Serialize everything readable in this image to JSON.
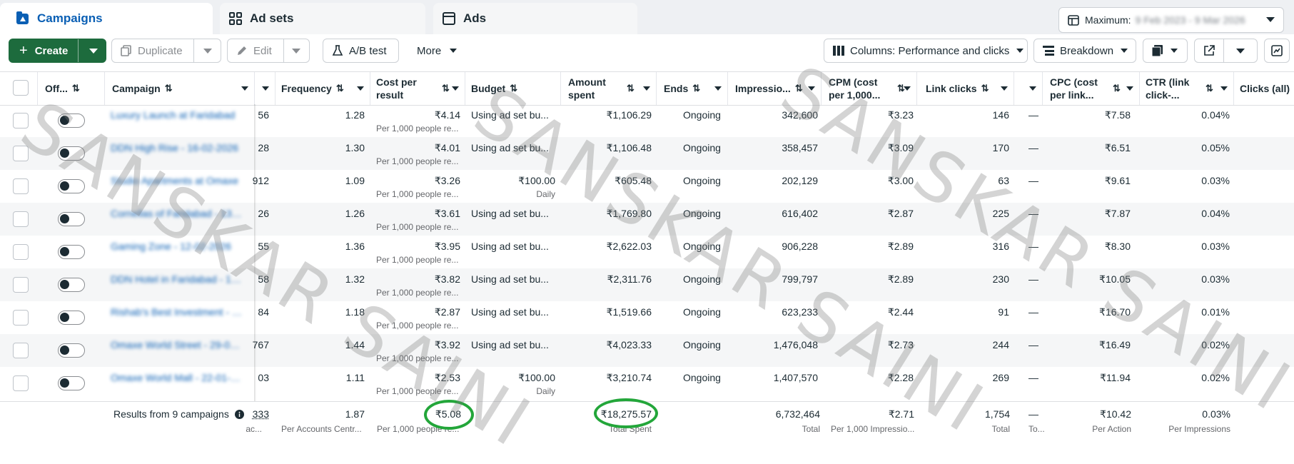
{
  "tabs": [
    {
      "label": "Campaigns",
      "icon": "campaign-icon",
      "active": true
    },
    {
      "label": "Ad sets",
      "icon": "grid-icon",
      "active": false
    },
    {
      "label": "Ads",
      "icon": "ad-icon",
      "active": false
    }
  ],
  "date_range": {
    "prefix": "Maximum:",
    "value": "9 Feb 2023 - 9 Mar 2026"
  },
  "toolbar": {
    "create": "Create",
    "duplicate": "Duplicate",
    "edit": "Edit",
    "ab_test": "A/B test",
    "more": "More",
    "columns": "Columns: Performance and clicks",
    "breakdown": "Breakdown"
  },
  "columns": {
    "off": "Off...",
    "campaign": "Campaign",
    "frequency": "Frequency",
    "cost_per_result": "Cost per result",
    "budget": "Budget",
    "amount_spent": "Amount spent",
    "ends": "Ends",
    "impressions": "Impressio...",
    "cpm": "CPM (cost per 1,000...",
    "link_clicks": "Link clicks",
    "cpc": "CPC (cost per link...",
    "ctr": "CTR (link click-...",
    "clicks_all": "Clicks (all)"
  },
  "rows": [
    {
      "name": "Luxury Launch at Faridabad",
      "partial": "56",
      "frequency": "1.28",
      "cost": "₹4.14",
      "cost_sub": "Per 1,000 people re...",
      "budget": "Using ad set bu...",
      "budget_sub": "",
      "spent": "₹1,106.29",
      "ends": "Ongoing",
      "impressions": "342,600",
      "cpm": "₹3.23",
      "link_clicks": "146",
      "dash": "—",
      "cpc": "₹7.58",
      "ctr": "0.04%"
    },
    {
      "name": "DDN High Rise - 16-02-2026",
      "partial": "28",
      "frequency": "1.30",
      "cost": "₹4.01",
      "cost_sub": "Per 1,000 people re...",
      "budget": "Using ad set bu...",
      "budget_sub": "",
      "spent": "₹1,106.48",
      "ends": "Ongoing",
      "impressions": "358,457",
      "cpm": "₹3.09",
      "link_clicks": "170",
      "dash": "—",
      "cpc": "₹6.51",
      "ctr": "0.05%"
    },
    {
      "name": "Studio Apartments at Omaxe",
      "partial": "912",
      "frequency": "1.09",
      "cost": "₹3.26",
      "cost_sub": "Per 1,000 people re...",
      "budget": "₹100.00",
      "budget_sub": "Daily",
      "spent": "₹605.48",
      "ends": "Ongoing",
      "impressions": "202,129",
      "cpm": "₹3.00",
      "link_clicks": "63",
      "dash": "—",
      "cpc": "₹9.61",
      "ctr": "0.03%"
    },
    {
      "name": "Cornellas of Faridabad - 13-02",
      "partial": "26",
      "frequency": "1.26",
      "cost": "₹3.61",
      "cost_sub": "Per 1,000 people re...",
      "budget": "Using ad set bu...",
      "budget_sub": "",
      "spent": "₹1,769.80",
      "ends": "Ongoing",
      "impressions": "616,402",
      "cpm": "₹2.87",
      "link_clicks": "225",
      "dash": "—",
      "cpc": "₹7.87",
      "ctr": "0.04%"
    },
    {
      "name": "Gaming Zone - 12-02-2026",
      "partial": "55",
      "frequency": "1.36",
      "cost": "₹3.95",
      "cost_sub": "Per 1,000 people re...",
      "budget": "Using ad set bu...",
      "budget_sub": "",
      "spent": "₹2,622.03",
      "ends": "Ongoing",
      "impressions": "906,228",
      "cpm": "₹2.89",
      "link_clicks": "316",
      "dash": "—",
      "cpc": "₹8.30",
      "ctr": "0.03%"
    },
    {
      "name": "DDN Hotel in Faridabad - 10-02",
      "partial": "58",
      "frequency": "1.32",
      "cost": "₹3.82",
      "cost_sub": "Per 1,000 people re...",
      "budget": "Using ad set bu...",
      "budget_sub": "",
      "spent": "₹2,311.76",
      "ends": "Ongoing",
      "impressions": "799,797",
      "cpm": "₹2.89",
      "link_clicks": "230",
      "dash": "—",
      "cpc": "₹10.05",
      "ctr": "0.03%"
    },
    {
      "name": "Rishab's Best Investment - 09-02",
      "partial": "84",
      "frequency": "1.18",
      "cost": "₹2.87",
      "cost_sub": "Per 1,000 people re...",
      "budget": "Using ad set bu...",
      "budget_sub": "",
      "spent": "₹1,519.66",
      "ends": "Ongoing",
      "impressions": "623,233",
      "cpm": "₹2.44",
      "link_clicks": "91",
      "dash": "—",
      "cpc": "₹16.70",
      "ctr": "0.01%"
    },
    {
      "name": "Omaxe World Street - 29-01-2026",
      "partial": "767",
      "frequency": "1.44",
      "cost": "₹3.92",
      "cost_sub": "Per 1,000 people re...",
      "budget": "Using ad set bu...",
      "budget_sub": "",
      "spent": "₹4,023.33",
      "ends": "Ongoing",
      "impressions": "1,476,048",
      "cpm": "₹2.73",
      "link_clicks": "244",
      "dash": "—",
      "cpc": "₹16.49",
      "ctr": "0.02%"
    },
    {
      "name": "Omaxe World Mall - 22-01-2026",
      "partial": "03",
      "frequency": "1.11",
      "cost": "₹2.53",
      "cost_sub": "Per 1,000 people re...",
      "budget": "₹100.00",
      "budget_sub": "Daily",
      "spent": "₹3,210.74",
      "ends": "Ongoing",
      "impressions": "1,407,570",
      "cpm": "₹2.28",
      "link_clicks": "269",
      "dash": "—",
      "cpc": "₹11.94",
      "ctr": "0.02%"
    }
  ],
  "totals": {
    "label": "Results from 9 campaigns",
    "partial": "333",
    "partial_sub": "ac...",
    "frequency": "1.87",
    "frequency_sub": "Per Accounts Centr...",
    "cost": "₹5.08",
    "cost_sub": "Per 1,000 people re...",
    "spent": "₹18,275.57",
    "spent_sub": "Total Spent",
    "impressions": "6,732,464",
    "impressions_sub": "Total",
    "cpm": "₹2.71",
    "cpm_sub": "Per 1,000 Impressio...",
    "link_clicks": "1,754",
    "link_clicks_sub": "Total",
    "dash": "—",
    "dash_sub": "To...",
    "cpc": "₹10.42",
    "cpc_sub": "Per Action",
    "ctr": "0.03%",
    "ctr_sub": "Per Impressions"
  },
  "watermark": "SANSKAR SAINI",
  "colors": {
    "primary_green": "#1d6b3d",
    "highlight_circle": "#23a63a",
    "active_tab": "#0a5fb4"
  }
}
